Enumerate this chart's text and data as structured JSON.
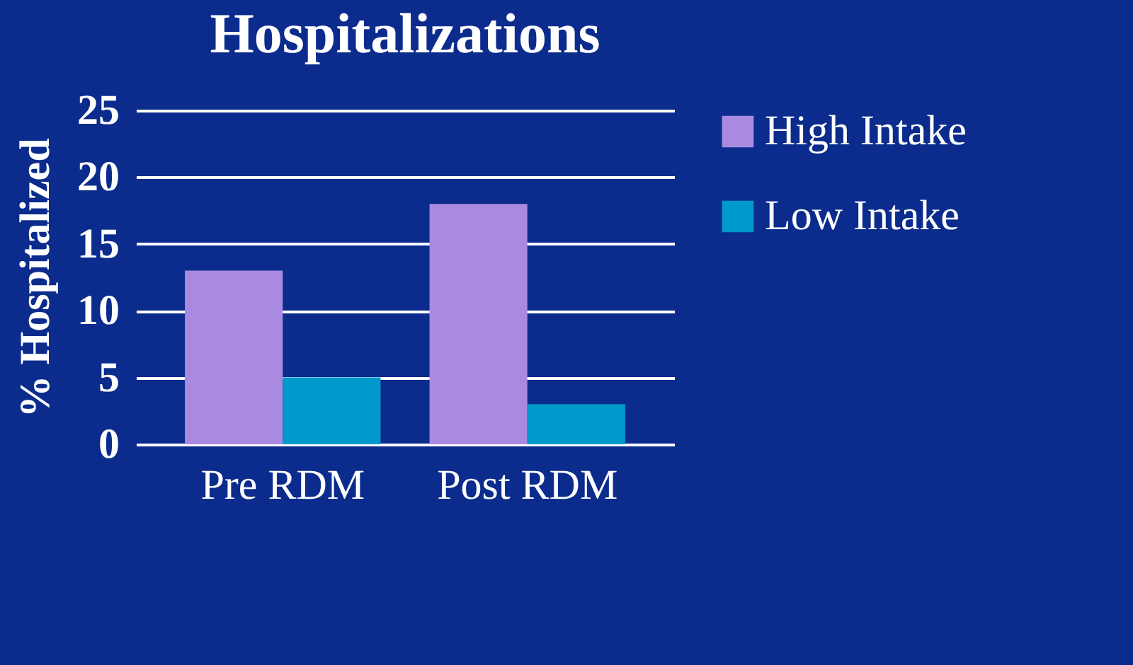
{
  "chart_data": {
    "type": "bar",
    "title": "Hospitalizations",
    "ylabel": "% Hospitalized",
    "categories": [
      "Pre RDM",
      "Post RDM"
    ],
    "series": [
      {
        "name": "High Intake",
        "color": "#a98ae0",
        "values": [
          13,
          18
        ]
      },
      {
        "name": "Low Intake",
        "color": "#0099cc",
        "values": [
          5,
          3
        ]
      }
    ],
    "ylim": [
      0,
      25
    ],
    "yticks": [
      0,
      5,
      10,
      15,
      20,
      25
    ],
    "grid": "y",
    "legend": "right"
  }
}
